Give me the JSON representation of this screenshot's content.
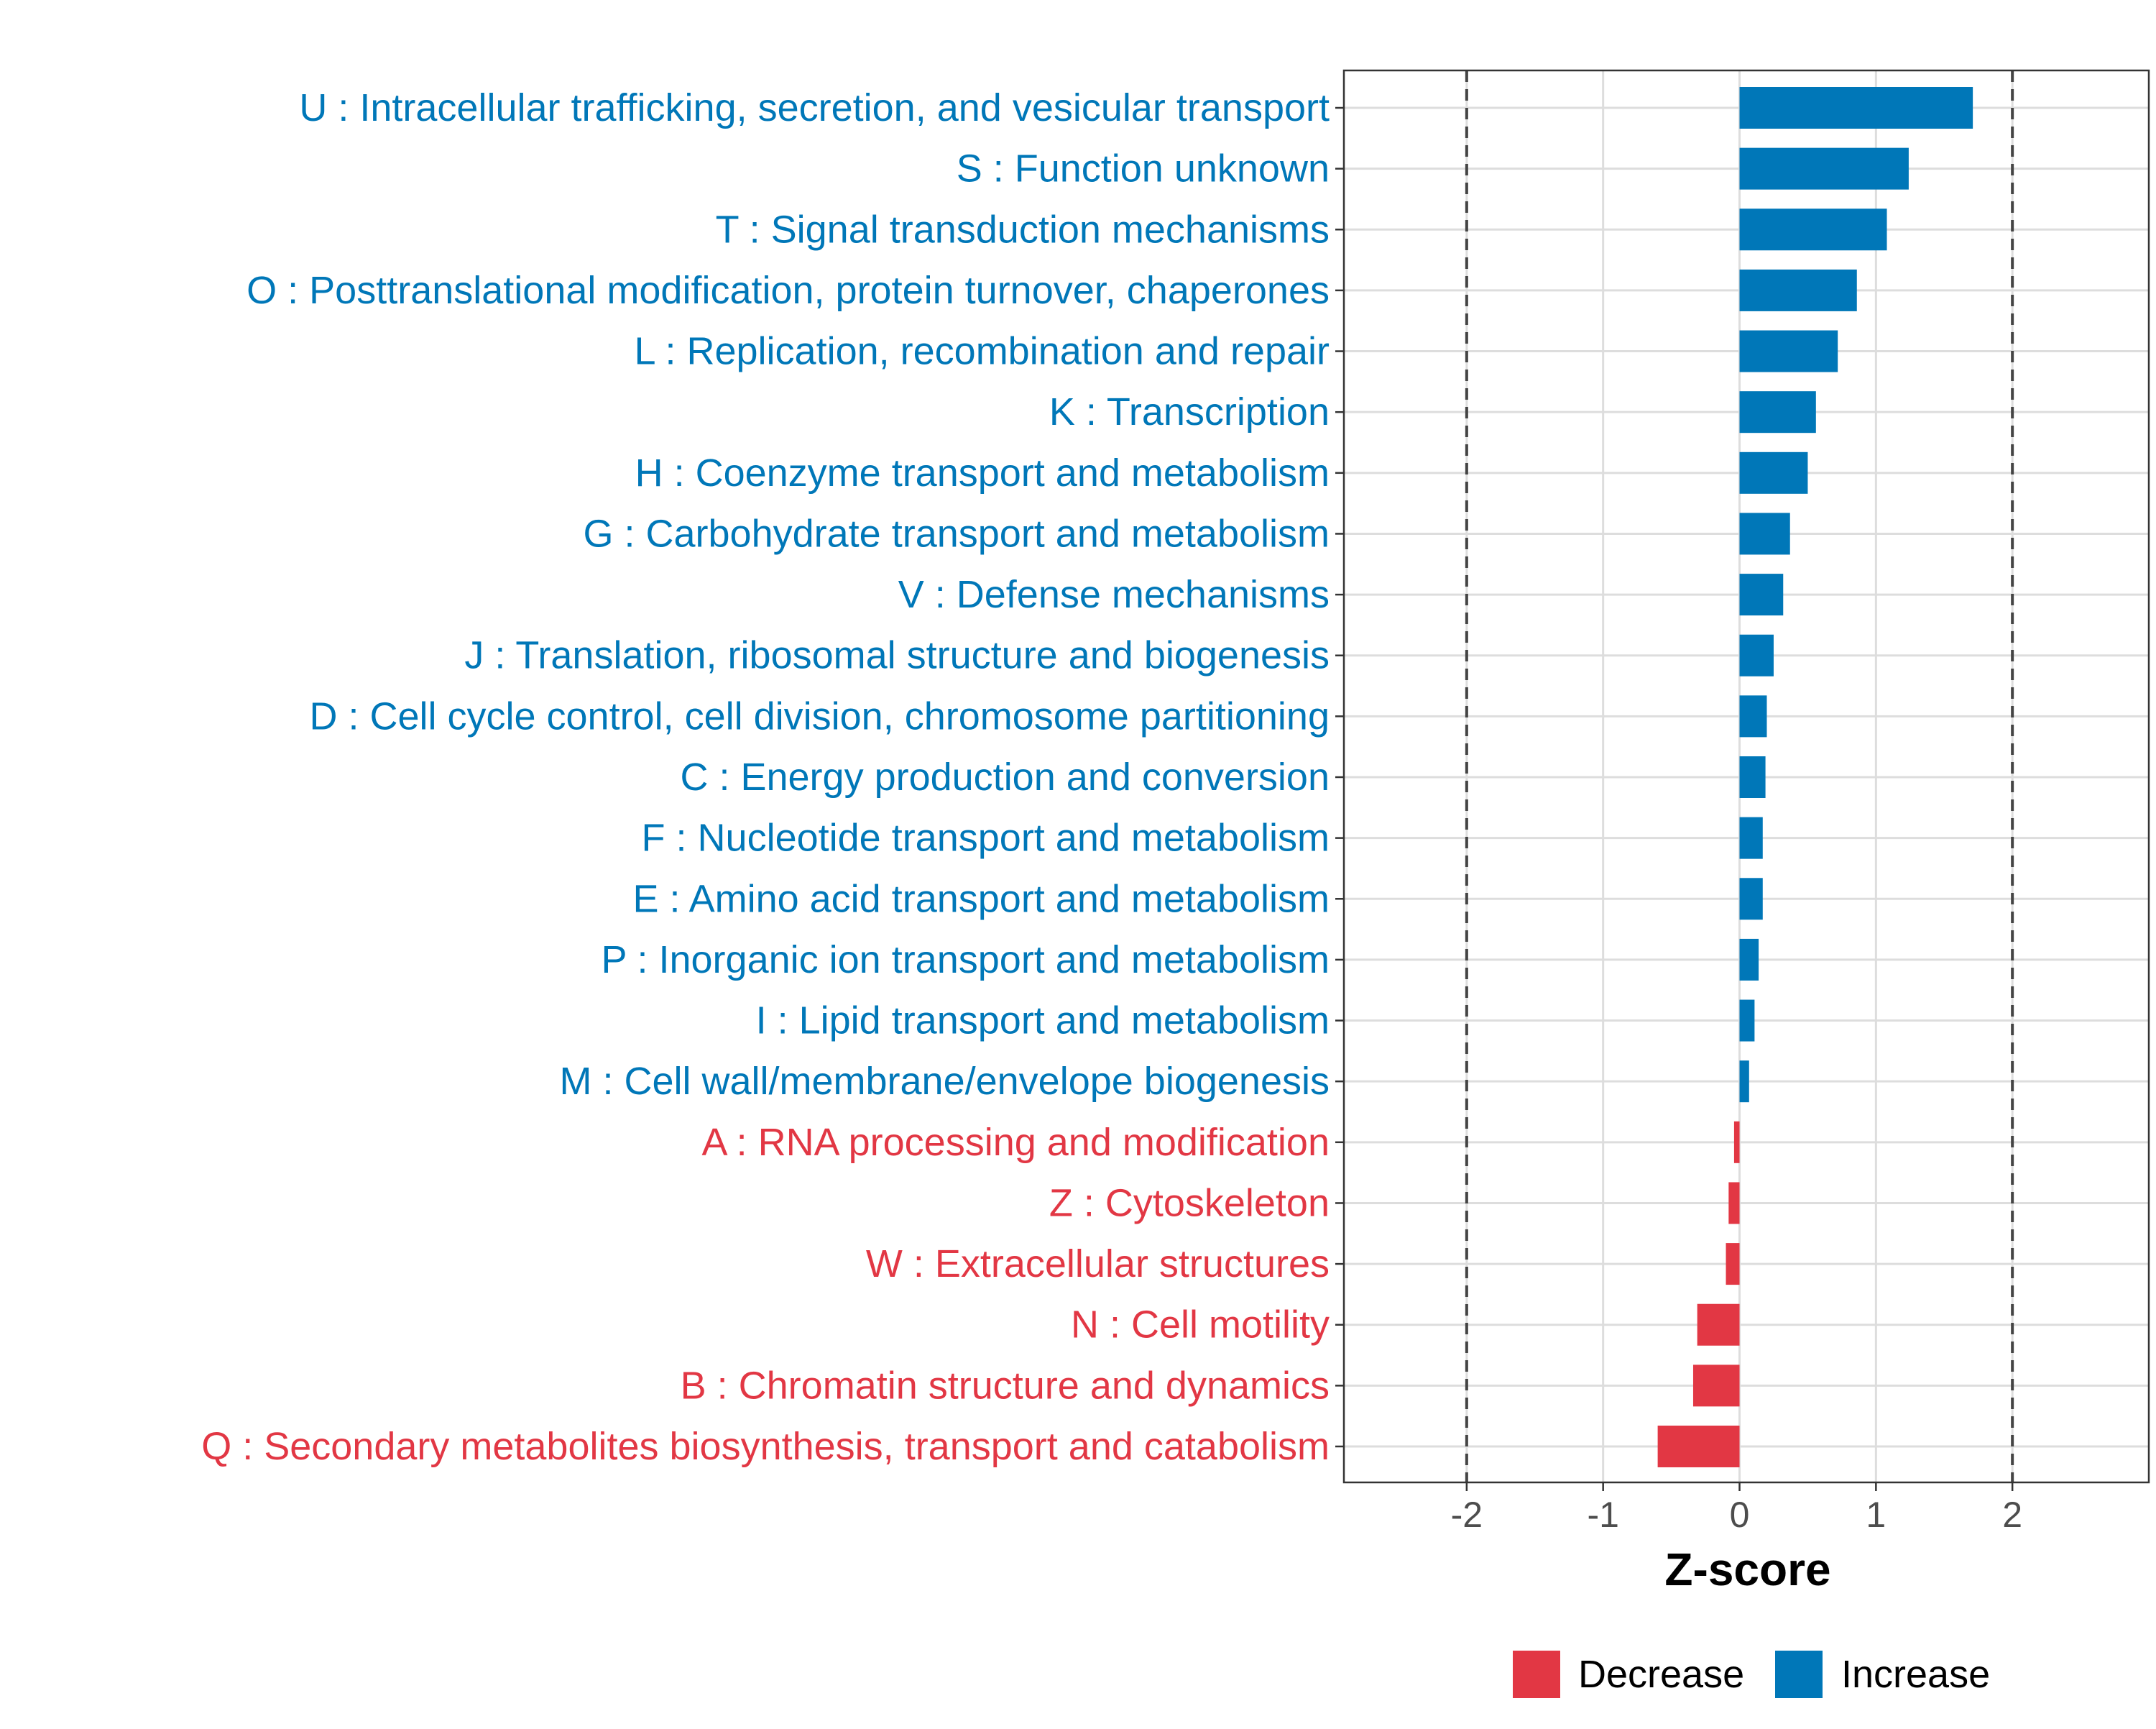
{
  "chart_data": {
    "type": "bar",
    "orientation": "horizontal",
    "title": "",
    "xlabel": "Z-score",
    "ylabel": "",
    "xlim": [
      -2.9,
      3.0
    ],
    "xticks": [
      -2,
      -1,
      0,
      1,
      2
    ],
    "xtick_labels": [
      "-2",
      "-1",
      "0",
      "1",
      "2"
    ],
    "reference_lines": [
      -2,
      2
    ],
    "grid": true,
    "colors": {
      "Decrease": "#E23744",
      "Increase": "#0077B8"
    },
    "categories": [
      "U : Intracellular trafficking, secretion, and vesicular transport",
      "S : Function unknown",
      "T : Signal transduction mechanisms",
      "O : Posttranslational modification, protein turnover, chaperones",
      "L : Replication, recombination and repair",
      "K : Transcription",
      "H : Coenzyme transport and metabolism",
      "G : Carbohydrate transport and metabolism",
      "V : Defense mechanisms",
      "J : Translation, ribosomal structure and biogenesis",
      "D : Cell cycle control, cell division, chromosome partitioning",
      "C : Energy production and conversion",
      "F : Nucleotide transport and metabolism",
      "E : Amino acid transport and metabolism",
      "P : Inorganic ion transport and metabolism",
      "I : Lipid transport and metabolism",
      "M : Cell wall/membrane/envelope biogenesis",
      "A : RNA processing and modification",
      "Z : Cytoskeleton",
      "W : Extracellular structures",
      "N : Cell motility",
      "B : Chromatin structure and dynamics",
      "Q : Secondary metabolites biosynthesis, transport and catabolism"
    ],
    "values": [
      1.71,
      1.24,
      1.08,
      0.86,
      0.72,
      0.56,
      0.5,
      0.37,
      0.32,
      0.25,
      0.2,
      0.19,
      0.17,
      0.17,
      0.14,
      0.11,
      0.07,
      -0.04,
      -0.08,
      -0.1,
      -0.31,
      -0.34,
      -0.6
    ],
    "groups": [
      "Increase",
      "Increase",
      "Increase",
      "Increase",
      "Increase",
      "Increase",
      "Increase",
      "Increase",
      "Increase",
      "Increase",
      "Increase",
      "Increase",
      "Increase",
      "Increase",
      "Increase",
      "Increase",
      "Increase",
      "Decrease",
      "Decrease",
      "Decrease",
      "Decrease",
      "Decrease",
      "Decrease"
    ],
    "legend": {
      "position": "bottom",
      "entries": [
        {
          "label": "Decrease",
          "color": "#E23744"
        },
        {
          "label": "Increase",
          "color": "#0077B8"
        }
      ]
    }
  }
}
